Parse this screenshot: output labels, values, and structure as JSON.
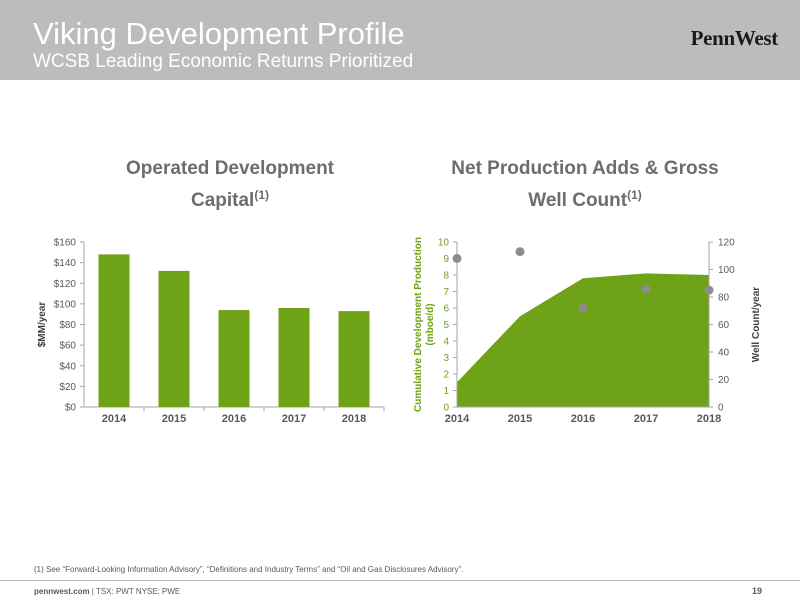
{
  "header": {
    "title": "Viking Development Profile",
    "subtitle": "WCSB Leading Economic Returns Prioritized",
    "logo": "PennWest"
  },
  "colors": {
    "header_bg": "#bcbcbc",
    "accent_green": "#6fa317",
    "dots_gray": "#8c8c8c",
    "axis_green": "#6fa317"
  },
  "chart_data": [
    {
      "type": "bar",
      "title": "Operated Development Capital",
      "title_sup": "(1)",
      "ylabel": "$MM/year",
      "categories": [
        "2014",
        "2015",
        "2016",
        "2017",
        "2018"
      ],
      "values": [
        148,
        132,
        94,
        96,
        93
      ],
      "ylim": [
        0,
        160
      ],
      "yticks": [
        "$0",
        "$20",
        "$40",
        "$60",
        "$80",
        "$100",
        "$120",
        "$140",
        "$160"
      ],
      "color": "#6fa317"
    },
    {
      "type": "area",
      "title": "Net Production Adds & Gross Well Count",
      "title_sup": "(1)",
      "x": [
        "2014",
        "2015",
        "2016",
        "2017",
        "2018"
      ],
      "area": {
        "values": [
          1.5,
          5.5,
          7.8,
          8.1,
          8.0
        ],
        "color": "#6fa317"
      },
      "ylabel_left": "Cumulative Development Production (mboe/d)",
      "ylim_left": [
        0,
        10
      ],
      "yticks_left": [
        "0",
        "1",
        "2",
        "3",
        "4",
        "5",
        "6",
        "7",
        "8",
        "9",
        "10"
      ],
      "scatter": {
        "values": [
          108,
          113,
          72,
          86,
          85
        ],
        "color": "#8c8c8c"
      },
      "ylabel_right": "Well Count/year",
      "ylim_right": [
        0,
        120
      ],
      "yticks_right": [
        "0",
        "20",
        "40",
        "60",
        "80",
        "100",
        "120"
      ]
    }
  ],
  "footnote": "(1) See “Forward-Looking Information Advisory”, “Definitions and Industry Terms” and “Oil and Gas Disclosures Advisory”.",
  "footer": {
    "site": "pennwest.com",
    "tickers": " | TSX: PWT  NYSE: PWE",
    "page": "19"
  }
}
